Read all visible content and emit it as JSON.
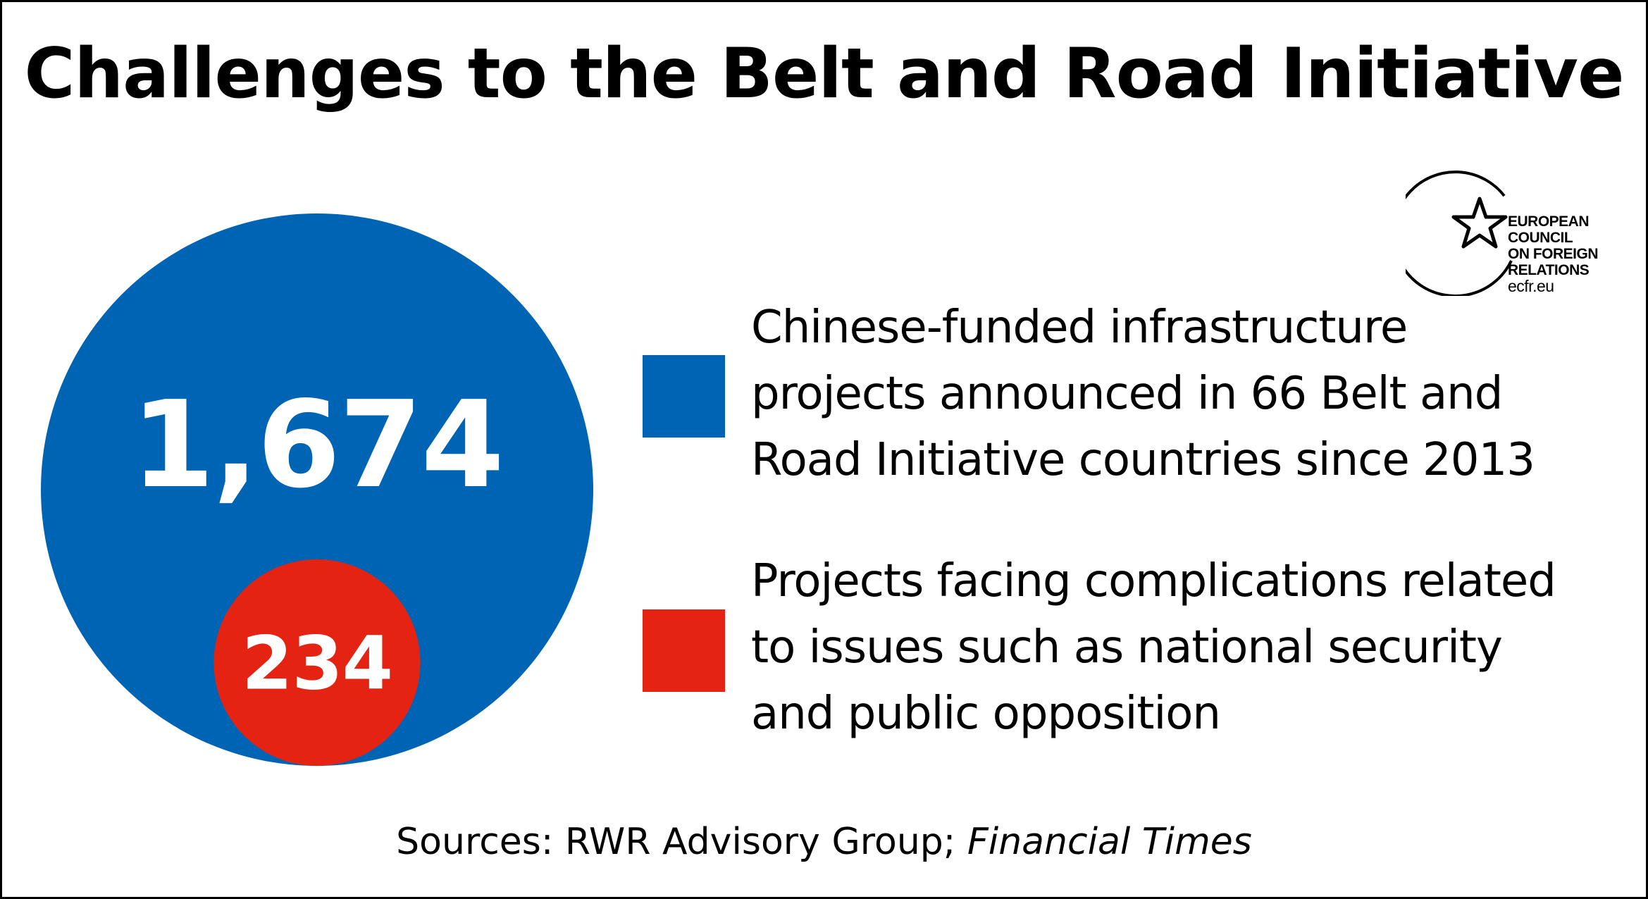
{
  "title": "Challenges to the Belt and Road Initiative",
  "chart_data": {
    "type": "bubble",
    "title": "Challenges to the Belt and Road Initiative",
    "series": [
      {
        "name": "Chinese-funded infrastructure projects announced in 66 Belt and Road Initiative countries since 2013",
        "value": 1674,
        "label": "1,674",
        "color": "#0064b4"
      },
      {
        "name": "Projects facing complications related to issues such as national security and public opposition",
        "value": 234,
        "label": "234",
        "color": "#e42313"
      }
    ]
  },
  "legend": {
    "items": [
      {
        "lines": [
          "Chinese-funded infrastructure",
          "projects announced in 66 Belt and",
          "Road Initiative countries since 2013"
        ],
        "color": "#0064b4"
      },
      {
        "lines": [
          "Projects facing complications related",
          "to issues such as national security",
          "and public opposition"
        ],
        "color": "#e42313"
      }
    ]
  },
  "logo": {
    "icon": "star-circle-icon",
    "lines": [
      "EUROPEAN",
      "COUNCIL",
      "ON FOREIGN",
      "RELATIONS"
    ],
    "url": "ecfr.eu"
  },
  "sources": {
    "prefix": "Sources: RWR Advisory Group; ",
    "italic": "Financial Times"
  }
}
